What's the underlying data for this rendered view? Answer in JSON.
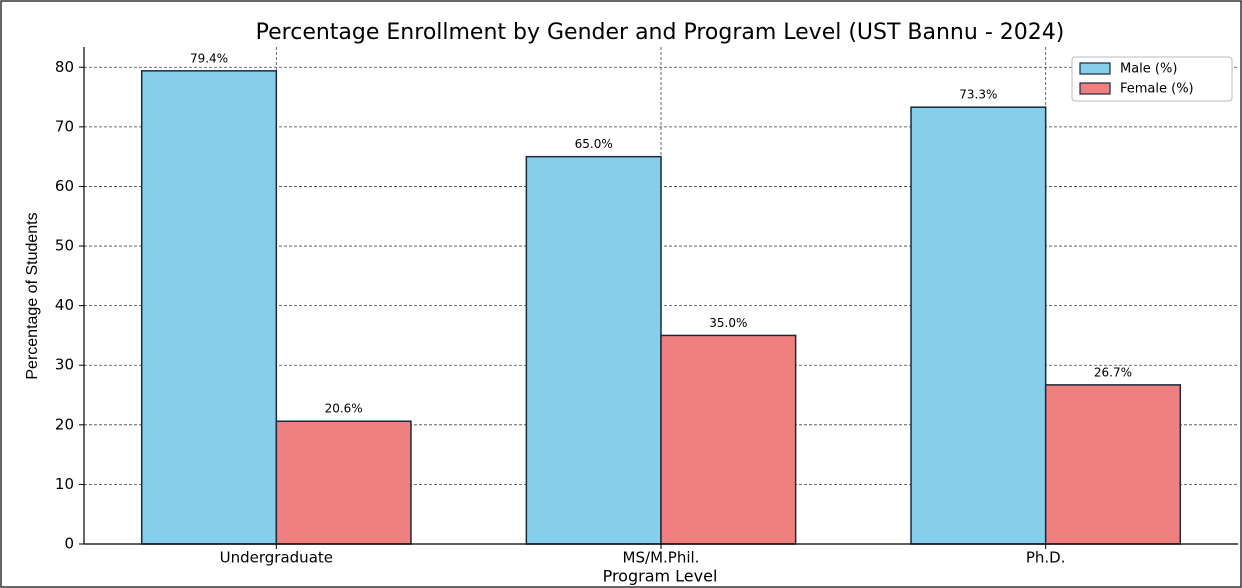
{
  "chart_data": {
    "type": "bar",
    "title": "Percentage Enrollment by Gender and Program Level (UST Bannu - 2024)",
    "x_label": "Program Level",
    "y_label": "Percentage of Students",
    "categories": [
      "Undergraduate",
      "MS/M.Phil.",
      "Ph.D."
    ],
    "series": [
      {
        "name": "Male (%)",
        "color": "#87ceeb",
        "values": [
          79.4,
          65.0,
          73.3
        ],
        "value_labels": [
          "79.4%",
          "65.0%",
          "73.3%"
        ]
      },
      {
        "name": "Female (%)",
        "color": "#f08080",
        "values": [
          20.6,
          35.0,
          26.7
        ],
        "value_labels": [
          "20.6%",
          "35.0%",
          "26.7%"
        ]
      }
    ],
    "ylim": [
      0,
      83.4
    ],
    "yticks": [
      0,
      10,
      20,
      30,
      40,
      50,
      60,
      70,
      80
    ],
    "grid": true,
    "legend": "upper right"
  }
}
